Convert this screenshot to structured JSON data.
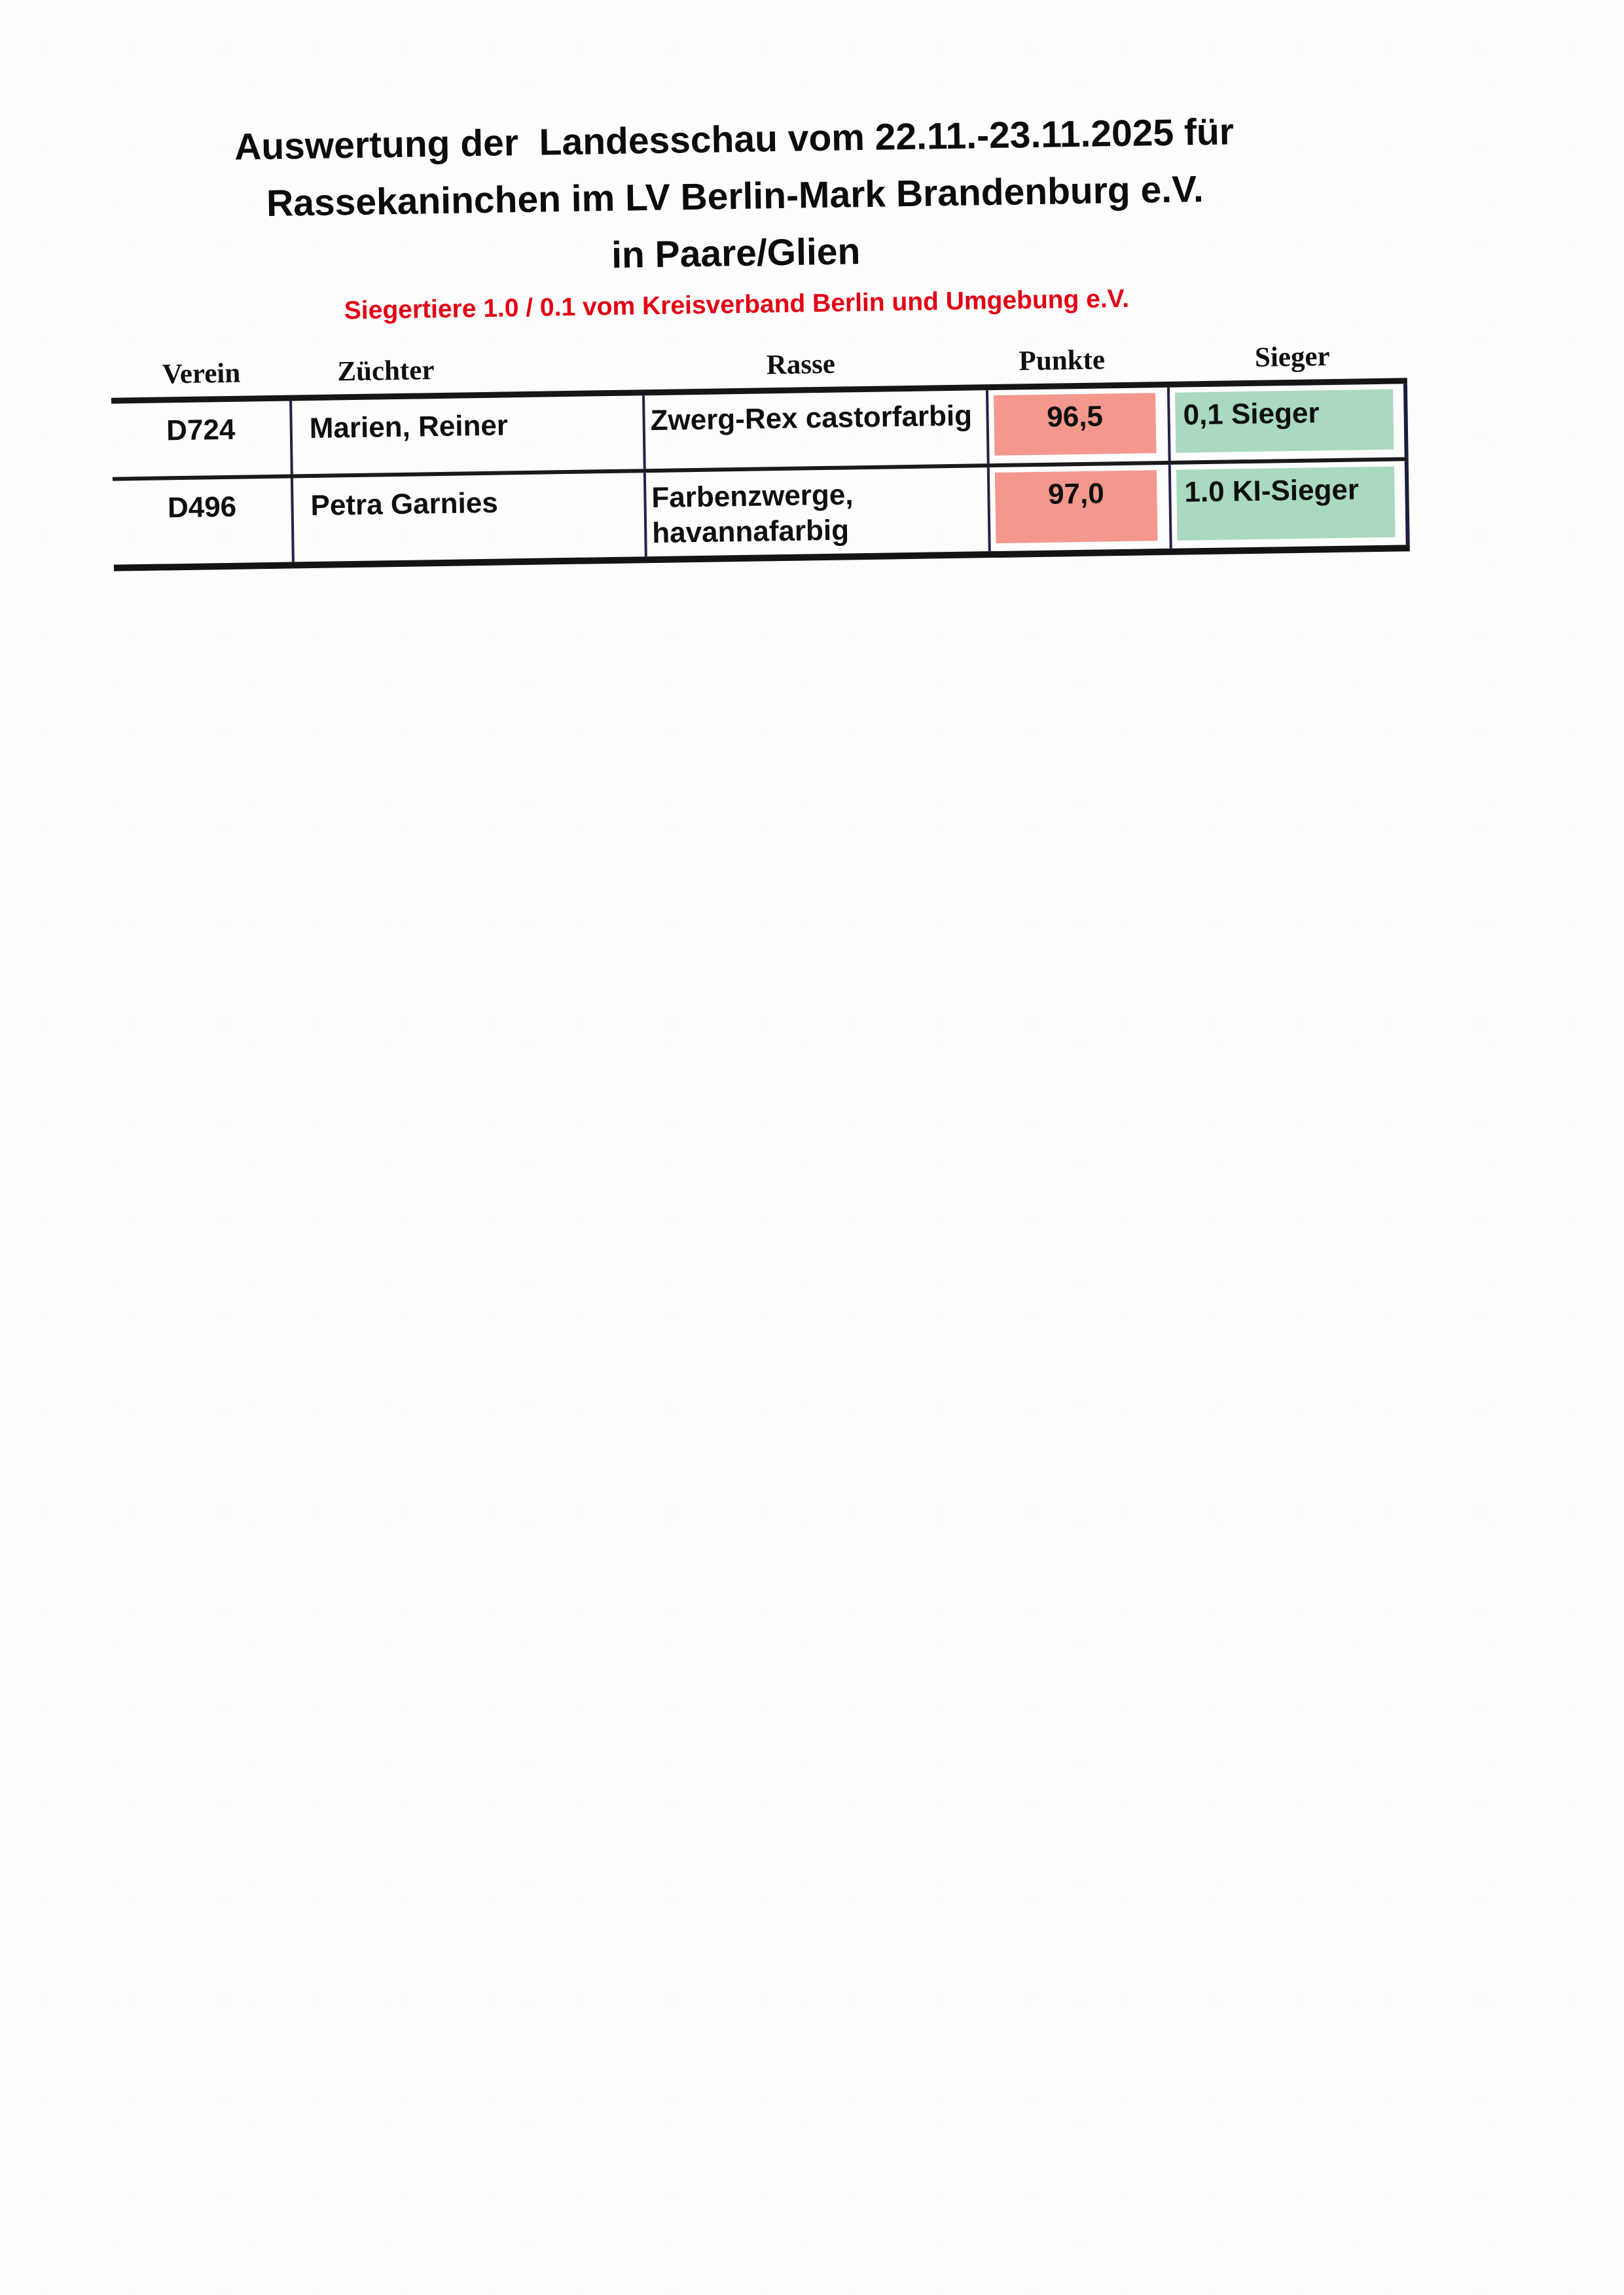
{
  "document": {
    "title_lines": [
      "Auswertung der  Landesschau vom 22.11.-23.11.2025 für",
      "Rassekaninchen im LV Berlin-Mark Brandenburg e.V.",
      "in Paare/Glien"
    ],
    "subtitle": "Siegertiere 1.0 / 0.1 vom Kreisverband Berlin und Umgebung e.V."
  },
  "table": {
    "headers": [
      "Verein",
      "Züchter",
      "Rasse",
      "Punkte",
      "Sieger"
    ],
    "rows": [
      {
        "verein": "D724",
        "zuechter": "Marien, Reiner",
        "rasse": "Zwerg-Rex castorfarbig",
        "punkte": "96,5",
        "sieger": "0,1 Sieger"
      },
      {
        "verein": "D496",
        "zuechter": "Petra Garnies",
        "rasse": "Farbenzwerge,\nhavannafarbig",
        "punkte": "97,0",
        "sieger": "1.0 KI-Sieger"
      }
    ]
  },
  "colors": {
    "points_highlight": "#f4988e",
    "winner_highlight": "#a9d9be",
    "subtitle_red": "#e30014"
  }
}
